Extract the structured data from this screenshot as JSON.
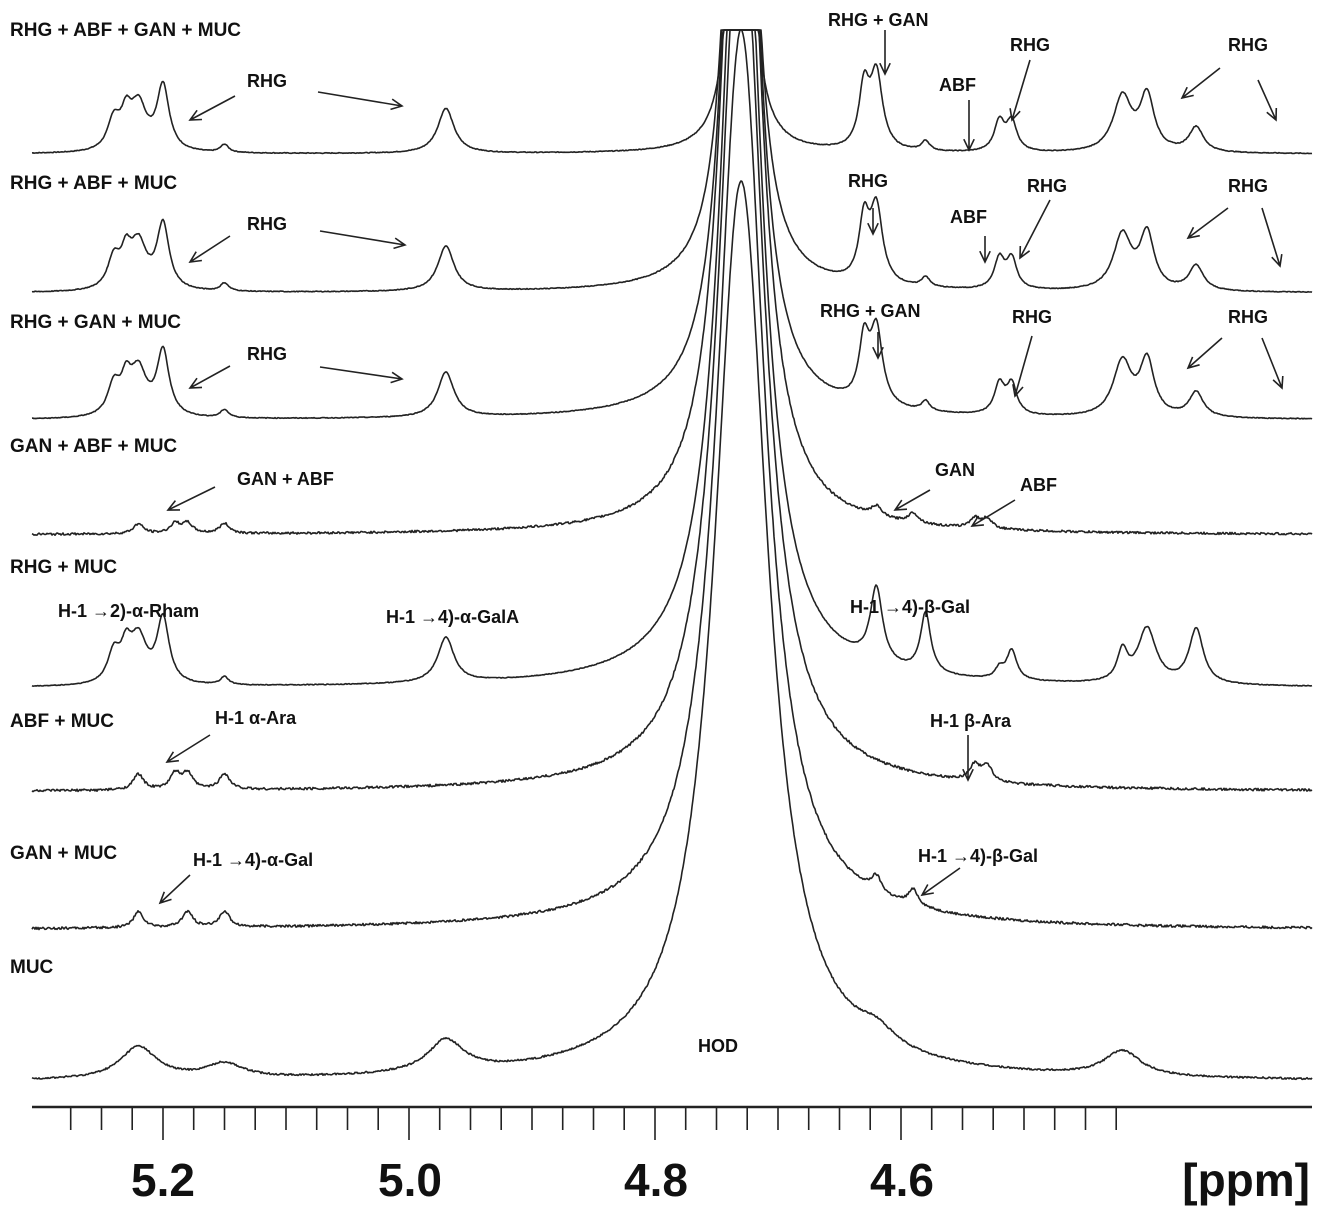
{
  "chart_data": {
    "type": "line",
    "xlabel": "[ppm]",
    "x_range": [
      5.3,
      4.43
    ],
    "x_reversed": true,
    "x_ticks": [
      {
        "value": 5.2,
        "label": "5.2"
      },
      {
        "value": 5.0,
        "label": "5.0"
      },
      {
        "value": 4.8,
        "label": "4.8"
      },
      {
        "value": 4.6,
        "label": "4.6"
      }
    ],
    "minor_tick_step": 0.05,
    "grid": false,
    "legend": "none",
    "solvent_peak": {
      "label": "HOD",
      "ppm": 4.73
    },
    "series": [
      {
        "name": "RHG + ABF + GAN + MUC",
        "peaks": [
          5.24,
          5.23,
          5.22,
          5.2,
          5.15,
          4.97,
          4.62,
          4.63,
          4.58,
          4.52,
          4.51,
          4.42,
          4.4,
          4.36
        ]
      },
      {
        "name": "RHG + ABF + MUC",
        "peaks": [
          5.24,
          5.23,
          5.22,
          5.2,
          5.15,
          4.97,
          4.62,
          4.63,
          4.58,
          4.52,
          4.51,
          4.42,
          4.4,
          4.36
        ]
      },
      {
        "name": "RHG + GAN + MUC",
        "peaks": [
          5.24,
          5.23,
          5.22,
          5.2,
          5.15,
          4.97,
          4.62,
          4.63,
          4.58,
          4.52,
          4.51,
          4.42,
          4.4,
          4.36
        ]
      },
      {
        "name": "GAN + ABF + MUC",
        "peaks": [
          5.22,
          5.19,
          5.18,
          5.15,
          4.62,
          4.59,
          4.54,
          4.53
        ]
      },
      {
        "name": "RHG + MUC",
        "peaks": [
          5.24,
          5.23,
          5.22,
          5.2,
          5.15,
          4.97,
          4.62,
          4.58,
          4.52,
          4.51,
          4.42,
          4.4,
          4.36
        ]
      },
      {
        "name": "ABF + MUC",
        "peaks": [
          5.22,
          5.19,
          5.18,
          5.15,
          4.54,
          4.53
        ]
      },
      {
        "name": "GAN + MUC",
        "peaks": [
          5.22,
          5.18,
          5.15,
          4.62,
          4.59
        ]
      },
      {
        "name": "MUC",
        "peaks": [
          5.22,
          5.15,
          4.97,
          4.62,
          4.42
        ]
      }
    ],
    "annotations": [
      {
        "trace": "RHG + ABF + GAN + MUC",
        "text": "RHG"
      },
      {
        "trace": "RHG + ABF + GAN + MUC",
        "text": "RHG + GAN"
      },
      {
        "trace": "RHG + ABF + GAN + MUC",
        "text": "ABF"
      },
      {
        "trace": "RHG + ABF + GAN + MUC",
        "text": "RHG"
      },
      {
        "trace": "RHG + ABF + GAN + MUC",
        "text": "RHG"
      },
      {
        "trace": "RHG + ABF + MUC",
        "text": "RHG"
      },
      {
        "trace": "RHG + ABF + MUC",
        "text": "RHG"
      },
      {
        "trace": "RHG + ABF + MUC",
        "text": "ABF"
      },
      {
        "trace": "RHG + ABF + MUC",
        "text": "RHG"
      },
      {
        "trace": "RHG + ABF + MUC",
        "text": "RHG"
      },
      {
        "trace": "RHG + GAN + MUC",
        "text": "RHG"
      },
      {
        "trace": "RHG + GAN + MUC",
        "text": "RHG + GAN"
      },
      {
        "trace": "RHG + GAN + MUC",
        "text": "RHG"
      },
      {
        "trace": "RHG + GAN + MUC",
        "text": "RHG"
      },
      {
        "trace": "GAN + ABF + MUC",
        "text": "GAN + ABF"
      },
      {
        "trace": "GAN + ABF + MUC",
        "text": "GAN"
      },
      {
        "trace": "GAN + ABF + MUC",
        "text": "ABF"
      },
      {
        "trace": "RHG + MUC",
        "text": "H-1 →2)-α-Rham"
      },
      {
        "trace": "RHG + MUC",
        "text": "H-1 →4)-α-GalA"
      },
      {
        "trace": "RHG + MUC",
        "text": "H-1 →4)-β-Gal"
      },
      {
        "trace": "ABF + MUC",
        "text": "H-1 α-Ara"
      },
      {
        "trace": "ABF + MUC",
        "text": "H-1 β-Ara"
      },
      {
        "trace": "GAN + MUC",
        "text": "H-1 →4)-α-Gal"
      },
      {
        "trace": "GAN + MUC",
        "text": "H-1 →4)-β-Gal"
      },
      {
        "trace": "MUC",
        "text": "HOD"
      }
    ]
  }
}
